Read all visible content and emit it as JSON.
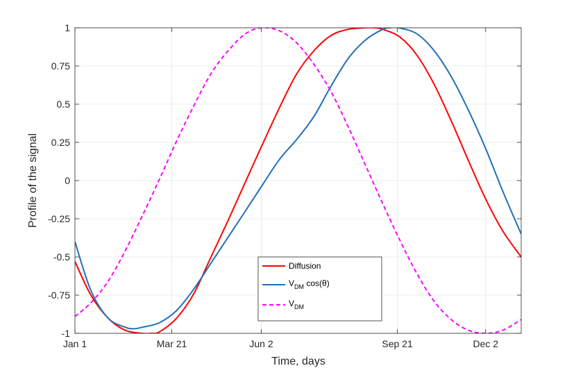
{
  "chart_data": {
    "type": "line",
    "title": "",
    "xlabel": "Time, days",
    "ylabel": "Profile of the signal",
    "xlim": [
      1,
      365
    ],
    "ylim": [
      -1,
      1
    ],
    "grid": true,
    "legend_position": "bottom-center",
    "x_ticks": [
      {
        "value": 1,
        "label": "Jan 1"
      },
      {
        "value": 80,
        "label": "Mar 21"
      },
      {
        "value": 153,
        "label": "Jun 2"
      },
      {
        "value": 264,
        "label": "Sep 21"
      },
      {
        "value": 336,
        "label": "Dec 2"
      }
    ],
    "y_ticks": [
      {
        "value": 1,
        "label": "1"
      },
      {
        "value": 0.75,
        "label": "0.75"
      },
      {
        "value": 0.5,
        "label": "0.5"
      },
      {
        "value": 0.25,
        "label": "0.25"
      },
      {
        "value": 0,
        "label": "0"
      },
      {
        "value": -0.25,
        "label": "-0.25"
      },
      {
        "value": -0.5,
        "label": "-0.5"
      },
      {
        "value": -0.75,
        "label": "-0.75"
      },
      {
        "value": -1,
        "label": "-1"
      }
    ],
    "series": [
      {
        "name": "Diffusion",
        "legend_main": "Diffusion",
        "legend_sub": "",
        "legend_suffix": "",
        "color": "#ff0000",
        "dash": "solid",
        "x": [
          1,
          14,
          28,
          42,
          56,
          63,
          70,
          84,
          98,
          112,
          126,
          140,
          153,
          168,
          182,
          196,
          210,
          224,
          238,
          245,
          252,
          266,
          280,
          294,
          308,
          322,
          336,
          350,
          365
        ],
        "y": [
          -0.53,
          -0.75,
          -0.9,
          -0.98,
          -1.0,
          -1.0,
          -0.99,
          -0.9,
          -0.74,
          -0.5,
          -0.26,
          -0.01,
          0.22,
          0.48,
          0.7,
          0.85,
          0.95,
          0.99,
          1.0,
          1.0,
          0.99,
          0.94,
          0.82,
          0.63,
          0.39,
          0.13,
          -0.12,
          -0.33,
          -0.5
        ]
      },
      {
        "name": "V_DM cos(theta)",
        "legend_main": "V",
        "legend_sub": "DM",
        "legend_suffix": " cos(θ)",
        "color": "#1f6fb6",
        "dash": "solid",
        "x": [
          1,
          14,
          28,
          42,
          49,
          56,
          70,
          84,
          98,
          112,
          126,
          140,
          153,
          168,
          182,
          196,
          210,
          224,
          238,
          252,
          258,
          265,
          280,
          294,
          308,
          322,
          336,
          350,
          365
        ],
        "y": [
          -0.4,
          -0.72,
          -0.9,
          -0.96,
          -0.97,
          -0.96,
          -0.93,
          -0.85,
          -0.71,
          -0.54,
          -0.37,
          -0.2,
          -0.04,
          0.14,
          0.27,
          0.42,
          0.62,
          0.8,
          0.92,
          0.99,
          1.0,
          1.0,
          0.96,
          0.85,
          0.68,
          0.46,
          0.21,
          -0.07,
          -0.35
        ]
      },
      {
        "name": "V_DM",
        "legend_main": "V",
        "legend_sub": "DM",
        "legend_suffix": "",
        "color": "#ff00ff",
        "dash": "dashed",
        "x": [
          1,
          14,
          28,
          42,
          56,
          70,
          84,
          98,
          112,
          126,
          140,
          153,
          168,
          182,
          196,
          210,
          224,
          238,
          252,
          266,
          280,
          294,
          308,
          322,
          336,
          350,
          365
        ],
        "y": [
          -0.89,
          -0.8,
          -0.66,
          -0.46,
          -0.23,
          0.01,
          0.26,
          0.49,
          0.7,
          0.85,
          0.96,
          1.0,
          0.98,
          0.9,
          0.76,
          0.58,
          0.35,
          0.1,
          -0.15,
          -0.39,
          -0.61,
          -0.79,
          -0.91,
          -0.98,
          -1.0,
          -0.98,
          -0.91
        ]
      }
    ]
  }
}
